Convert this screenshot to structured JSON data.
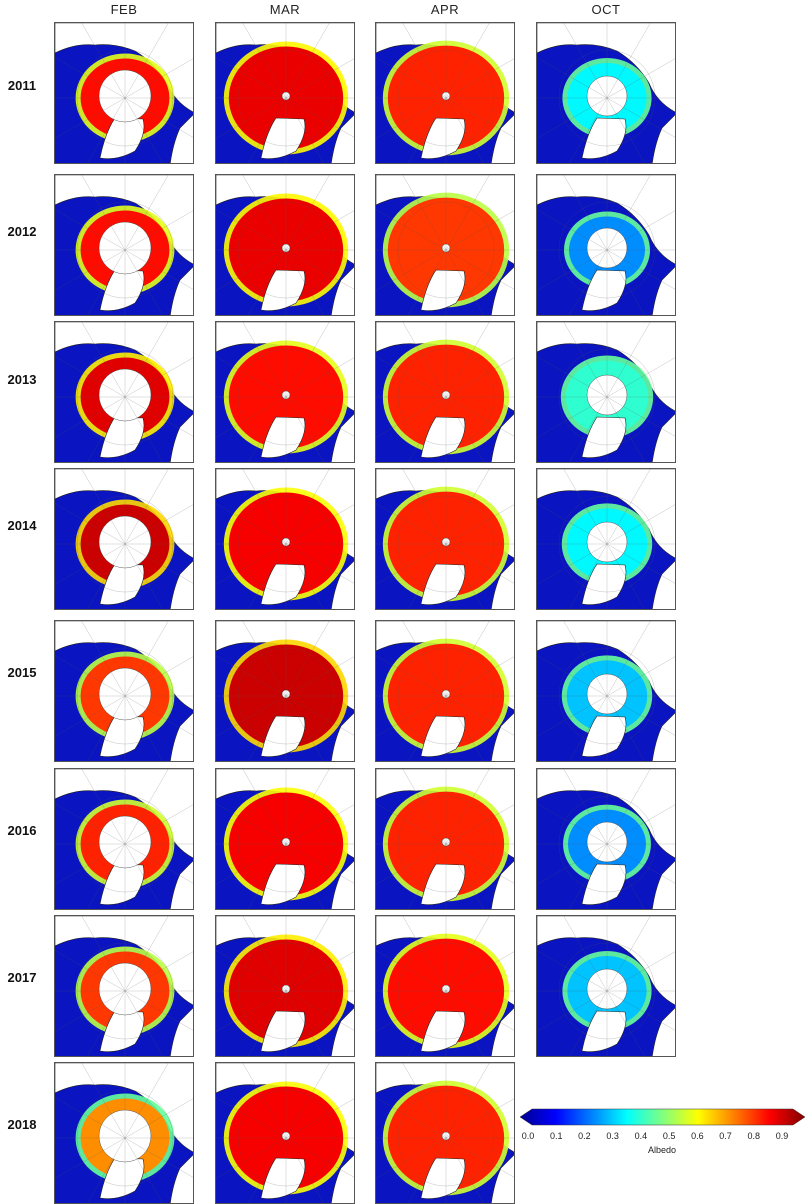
{
  "columns": [
    "FEB",
    "MAR",
    "APR",
    "OCT"
  ],
  "rows": [
    {
      "year": "2011",
      "maps": [
        {
          "month": "FEB",
          "ice_albedo": 0.82,
          "extent": 0.45
        },
        {
          "month": "MAR",
          "ice_albedo": 0.85,
          "extent": 0.85
        },
        {
          "month": "APR",
          "ice_albedo": 0.8,
          "extent": 0.88
        },
        {
          "month": "OCT",
          "ice_albedo": 0.35,
          "extent": 0.3
        }
      ]
    },
    {
      "year": "2012",
      "maps": [
        {
          "month": "FEB",
          "ice_albedo": 0.82,
          "extent": 0.45
        },
        {
          "month": "MAR",
          "ice_albedo": 0.85,
          "extent": 0.85
        },
        {
          "month": "APR",
          "ice_albedo": 0.78,
          "extent": 0.88
        },
        {
          "month": "OCT",
          "ice_albedo": 0.25,
          "extent": 0.25
        }
      ]
    },
    {
      "year": "2013",
      "maps": [
        {
          "month": "FEB",
          "ice_albedo": 0.86,
          "extent": 0.45
        },
        {
          "month": "MAR",
          "ice_albedo": 0.82,
          "extent": 0.85
        },
        {
          "month": "APR",
          "ice_albedo": 0.8,
          "extent": 0.88
        },
        {
          "month": "OCT",
          "ice_albedo": 0.4,
          "extent": 0.35
        }
      ]
    },
    {
      "year": "2014",
      "maps": [
        {
          "month": "FEB",
          "ice_albedo": 0.88,
          "extent": 0.45
        },
        {
          "month": "MAR",
          "ice_albedo": 0.84,
          "extent": 0.85
        },
        {
          "month": "APR",
          "ice_albedo": 0.8,
          "extent": 0.88
        },
        {
          "month": "OCT",
          "ice_albedo": 0.35,
          "extent": 0.32
        }
      ]
    },
    {
      "year": "2015",
      "maps": [
        {
          "month": "FEB",
          "ice_albedo": 0.78,
          "extent": 0.45
        },
        {
          "month": "MAR",
          "ice_albedo": 0.88,
          "extent": 0.85
        },
        {
          "month": "APR",
          "ice_albedo": 0.8,
          "extent": 0.88
        },
        {
          "month": "OCT",
          "ice_albedo": 0.3,
          "extent": 0.32
        }
      ]
    },
    {
      "year": "2016",
      "maps": [
        {
          "month": "FEB",
          "ice_albedo": 0.8,
          "extent": 0.45
        },
        {
          "month": "MAR",
          "ice_albedo": 0.84,
          "extent": 0.85
        },
        {
          "month": "APR",
          "ice_albedo": 0.8,
          "extent": 0.88
        },
        {
          "month": "OCT",
          "ice_albedo": 0.25,
          "extent": 0.28
        }
      ]
    },
    {
      "year": "2017",
      "maps": [
        {
          "month": "FEB",
          "ice_albedo": 0.78,
          "extent": 0.45
        },
        {
          "month": "MAR",
          "ice_albedo": 0.86,
          "extent": 0.85
        },
        {
          "month": "APR",
          "ice_albedo": 0.82,
          "extent": 0.88
        },
        {
          "month": "OCT",
          "ice_albedo": 0.3,
          "extent": 0.3
        }
      ]
    },
    {
      "year": "2018",
      "maps": [
        {
          "month": "FEB",
          "ice_albedo": 0.7,
          "extent": 0.45
        },
        {
          "month": "MAR",
          "ice_albedo": 0.84,
          "extent": 0.85
        },
        {
          "month": "APR",
          "ice_albedo": 0.8,
          "extent": 0.88
        }
      ]
    }
  ],
  "colorbar": {
    "label": "Albedo",
    "range": [
      0.0,
      0.95
    ],
    "ticks": [
      "0.0",
      "0.1",
      "0.2",
      "0.3",
      "0.4",
      "0.5",
      "0.6",
      "0.7",
      "0.8",
      "0.9"
    ],
    "colormap": "jet"
  },
  "colors": {
    "land": "#ffffff",
    "ocean_low": "#0014c8",
    "coast": "#222222"
  }
}
